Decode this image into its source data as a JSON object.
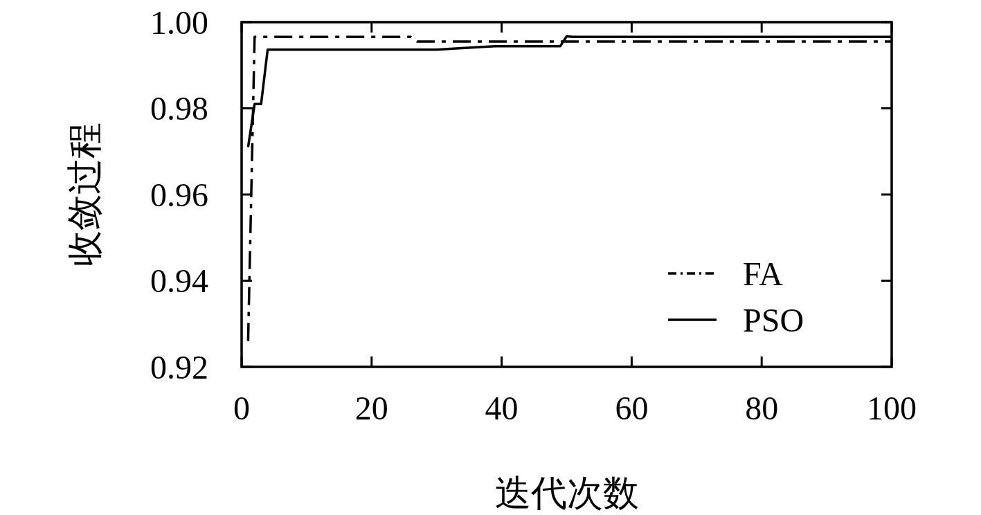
{
  "chart_data": {
    "type": "line",
    "xlabel": "迭代次数",
    "ylabel": "收敛过程",
    "xlim": [
      0,
      100
    ],
    "xticks": [
      0,
      20,
      40,
      60,
      80,
      100
    ],
    "ylim": [
      0.92,
      1.0
    ],
    "yticks": [
      0.92,
      0.94,
      0.96,
      0.98,
      {
        "value": 1.0,
        "label": "1.00"
      }
    ],
    "grid": false,
    "legend": "bottom right",
    "series": [
      {
        "name": "FA",
        "color": "#000000",
        "line_style": "dashed",
        "x": [
          1,
          2,
          26,
          27,
          100
        ],
        "values": [
          0.926,
          0.9966,
          0.9966,
          0.9955,
          0.9955
        ]
      },
      {
        "name": "PSO",
        "color": "#000000",
        "line_style": "solid",
        "x": [
          1,
          2,
          3,
          4,
          30,
          33,
          39,
          49,
          50,
          51,
          100
        ],
        "values": [
          0.971,
          0.981,
          0.981,
          0.9936,
          0.9936,
          0.9939,
          0.9944,
          0.9944,
          0.9967,
          0.9966,
          0.9966
        ]
      }
    ]
  }
}
